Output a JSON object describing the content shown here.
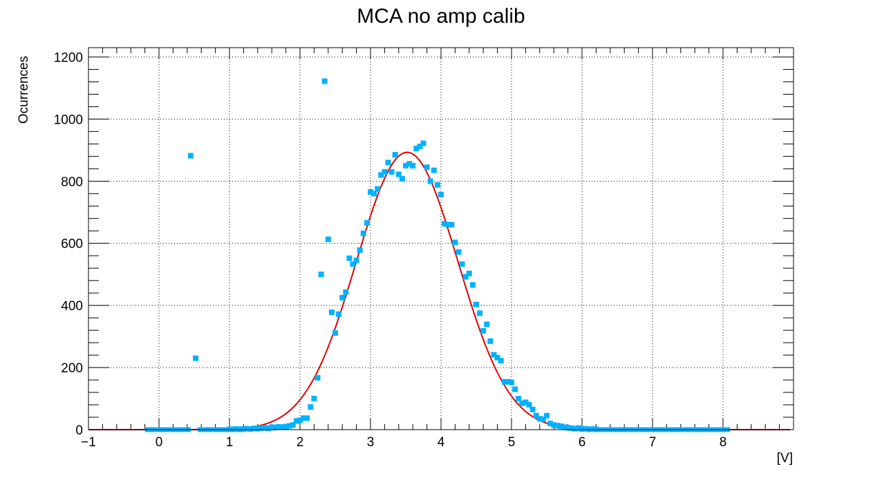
{
  "chart_data": {
    "type": "scatter",
    "title": "MCA no amp calib",
    "xlabel": "[V]",
    "ylabel": "Ocurrences",
    "xlim": [
      -1,
      9
    ],
    "ylim": [
      0,
      1230
    ],
    "xticks": [
      -1,
      0,
      1,
      2,
      3,
      4,
      5,
      6,
      7,
      8
    ],
    "xtick_labels": [
      "−1",
      "0",
      "1",
      "2",
      "3",
      "4",
      "5",
      "6",
      "7",
      "8"
    ],
    "yticks": [
      0,
      200,
      400,
      600,
      800,
      1000,
      1200
    ],
    "ytick_labels": [
      "0",
      "200",
      "400",
      "600",
      "800",
      "1000",
      "1200"
    ],
    "grid": true,
    "legend": "none",
    "series": [
      {
        "kind": "markers",
        "color": "#00b2ff",
        "points": [
          [
            0.45,
            882
          ],
          [
            0.52,
            230
          ],
          [
            1.85,
            12
          ],
          [
            1.9,
            15
          ],
          [
            1.95,
            28
          ],
          [
            2.0,
            30
          ],
          [
            2.05,
            37
          ],
          [
            2.1,
            37
          ],
          [
            2.15,
            73
          ],
          [
            2.2,
            100
          ],
          [
            2.25,
            167
          ],
          [
            2.3,
            500
          ],
          [
            2.35,
            1122
          ],
          [
            2.4,
            613
          ],
          [
            2.45,
            378
          ],
          [
            2.5,
            311
          ],
          [
            2.55,
            372
          ],
          [
            2.6,
            425
          ],
          [
            2.65,
            443
          ],
          [
            2.7,
            552
          ],
          [
            2.75,
            533
          ],
          [
            2.8,
            545
          ],
          [
            2.85,
            578
          ],
          [
            2.9,
            632
          ],
          [
            2.95,
            666
          ],
          [
            3.0,
            765
          ],
          [
            3.05,
            760
          ],
          [
            3.1,
            775
          ],
          [
            3.15,
            820
          ],
          [
            3.2,
            830
          ],
          [
            3.25,
            860
          ],
          [
            3.3,
            830
          ],
          [
            3.35,
            885
          ],
          [
            3.4,
            822
          ],
          [
            3.45,
            808
          ],
          [
            3.5,
            850
          ],
          [
            3.55,
            856
          ],
          [
            3.6,
            850
          ],
          [
            3.65,
            905
          ],
          [
            3.7,
            912
          ],
          [
            3.75,
            922
          ],
          [
            3.8,
            845
          ],
          [
            3.85,
            800
          ],
          [
            3.9,
            835
          ],
          [
            3.95,
            788
          ],
          [
            4.0,
            757
          ],
          [
            4.05,
            663
          ],
          [
            4.1,
            660
          ],
          [
            4.15,
            660
          ],
          [
            4.2,
            603
          ],
          [
            4.25,
            572
          ],
          [
            4.3,
            533
          ],
          [
            4.35,
            492
          ],
          [
            4.4,
            503
          ],
          [
            4.45,
            466
          ],
          [
            4.5,
            403
          ],
          [
            4.55,
            375
          ],
          [
            4.6,
            318
          ],
          [
            4.65,
            339
          ],
          [
            4.7,
            285
          ],
          [
            4.75,
            241
          ],
          [
            4.8,
            232
          ],
          [
            4.85,
            222
          ],
          [
            4.9,
            154
          ],
          [
            4.95,
            154
          ],
          [
            5.0,
            152
          ],
          [
            5.05,
            130
          ],
          [
            5.1,
            100
          ],
          [
            5.15,
            85
          ],
          [
            5.2,
            88
          ],
          [
            5.25,
            80
          ],
          [
            5.3,
            65
          ],
          [
            5.35,
            45
          ],
          [
            5.4,
            35
          ],
          [
            5.45,
            33
          ],
          [
            5.5,
            45
          ],
          [
            5.55,
            20
          ],
          [
            5.6,
            15
          ],
          [
            5.65,
            13
          ],
          [
            5.7,
            11
          ],
          [
            5.75,
            8
          ],
          [
            5.8,
            6
          ],
          [
            5.85,
            5
          ],
          [
            5.9,
            3
          ],
          [
            5.95,
            5
          ],
          [
            6.0,
            2
          ],
          [
            6.05,
            3
          ],
          [
            6.1,
            1
          ],
          [
            6.15,
            2
          ],
          [
            6.2,
            1
          ],
          [
            1.0,
            1
          ],
          [
            1.05,
            1
          ],
          [
            1.1,
            2
          ],
          [
            1.15,
            1
          ],
          [
            1.2,
            2
          ],
          [
            1.25,
            3
          ],
          [
            1.3,
            2
          ],
          [
            1.35,
            4
          ],
          [
            1.4,
            3
          ],
          [
            1.45,
            5
          ],
          [
            1.5,
            6
          ],
          [
            1.55,
            4
          ],
          [
            1.6,
            8
          ],
          [
            1.65,
            7
          ],
          [
            1.7,
            9
          ],
          [
            1.75,
            8
          ],
          [
            1.8,
            10
          ]
        ],
        "flat_segments": [
          [
            -0.2,
            0.45,
            0
          ],
          [
            0.55,
            1.0,
            0
          ],
          [
            6.2,
            8.1,
            0
          ]
        ]
      },
      {
        "kind": "fit_curve",
        "color": "#e00000",
        "model": "gaussian",
        "constant": 893,
        "mean": 3.52,
        "sigma": 0.72,
        "x_range": [
          -1,
          8.95
        ]
      }
    ]
  }
}
